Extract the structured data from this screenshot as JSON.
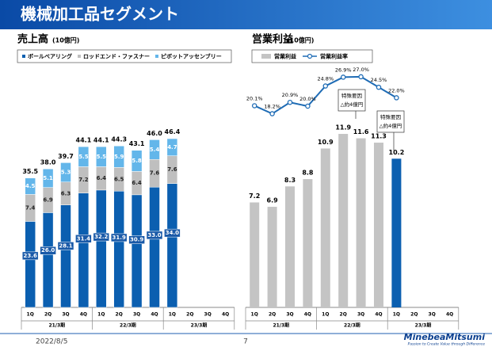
{
  "header": {
    "title": "機械加工品セグメント"
  },
  "chart_data": [
    {
      "type": "stacked-bar",
      "title": "売上高",
      "unit": "(10億円)",
      "categories": [
        "1Q",
        "2Q",
        "3Q",
        "4Q",
        "1Q",
        "2Q",
        "3Q",
        "4Q",
        "1Q",
        "2Q",
        "3Q",
        "4Q"
      ],
      "groups": [
        "21/3期",
        "22/3期",
        "23/3期"
      ],
      "series": [
        {
          "name": "ボールベアリング",
          "color": "#0b5fb0",
          "values": [
            23.6,
            26.0,
            28.1,
            31.4,
            32.2,
            31.9,
            30.9,
            33.0,
            34.0,
            null,
            null,
            null
          ],
          "value_labels": [
            "23.6",
            "26.0",
            "28.1",
            "31.4",
            "32.2",
            "31.9",
            "30.9",
            "33.0",
            "34.0",
            null,
            null,
            null
          ]
        },
        {
          "name": "ロッドエンド・ファスナー",
          "color": "#bfbfbf",
          "values": [
            7.4,
            6.9,
            6.3,
            7.2,
            6.4,
            6.5,
            6.4,
            7.6,
            7.6,
            null,
            null,
            null
          ],
          "value_labels": [
            "7.4",
            "6.9",
            "6.3",
            "7.2",
            "6.4",
            "6.5",
            "6.4",
            "7.6",
            "7.6",
            null,
            null,
            null
          ]
        },
        {
          "name": "ピボットアッセンブリー",
          "color": "#63b6ea",
          "values": [
            4.5,
            5.1,
            5.3,
            5.5,
            5.5,
            5.9,
            5.8,
            5.4,
            4.7,
            null,
            null,
            null
          ],
          "value_labels": [
            "4.5",
            "5.1",
            "5.3",
            "5.5",
            "5.5",
            "5.9",
            "5.8",
            "5.4",
            "4.7",
            null,
            null,
            null
          ]
        }
      ],
      "totals": [
        35.5,
        38.0,
        39.7,
        44.1,
        44.1,
        44.3,
        43.1,
        46.0,
        46.4,
        null,
        null,
        null
      ],
      "total_labels": [
        "35.5",
        "38.0",
        "39.7",
        "44.1",
        "44.1",
        "44.3",
        "43.1",
        "46.0",
        "46.4",
        null,
        null,
        null
      ],
      "legend": "top-left"
    },
    {
      "type": "combo",
      "title": "営業利益",
      "unit": "(10億円)",
      "categories": [
        "1Q",
        "2Q",
        "3Q",
        "4Q",
        "1Q",
        "2Q",
        "3Q",
        "4Q",
        "1Q",
        "2Q",
        "3Q",
        "4Q"
      ],
      "groups": [
        "21/3期",
        "22/3期",
        "23/3期"
      ],
      "series": [
        {
          "name": "営業利益",
          "type": "bar",
          "color": "#c4c4c4",
          "point_colors": [
            "#c4c4c4",
            "#c4c4c4",
            "#c4c4c4",
            "#c4c4c4",
            "#c4c4c4",
            "#c4c4c4",
            "#c4c4c4",
            "#c4c4c4",
            "#0b5fb0",
            null,
            null,
            null
          ],
          "values": [
            7.2,
            6.9,
            8.3,
            8.8,
            10.9,
            11.9,
            11.6,
            11.3,
            10.2,
            null,
            null,
            null
          ]
        },
        {
          "name": "営業利益率",
          "type": "line",
          "color": "#1f6cb5",
          "values": [
            20.1,
            18.2,
            20.9,
            20.0,
            24.8,
            26.9,
            27.0,
            24.5,
            22.0,
            null,
            null,
            null
          ],
          "value_labels": [
            "20.1%",
            "18.2%",
            "20.9%",
            "20.0%",
            "24.8%",
            "26.9%",
            "27.0%",
            "24.5%",
            "22.0%",
            null,
            null,
            null
          ]
        }
      ],
      "annotations": [
        {
          "lines": [
            "特殊要因",
            "△約4億円"
          ]
        },
        {
          "lines": [
            "特殊要因",
            "△約4億円"
          ]
        }
      ],
      "legend": "top-left"
    }
  ],
  "footer": {
    "date": "2022/8/5",
    "page": 7,
    "logo": "MinebeaMitsumi",
    "tagline": "Passion to Create Value through Difference"
  }
}
